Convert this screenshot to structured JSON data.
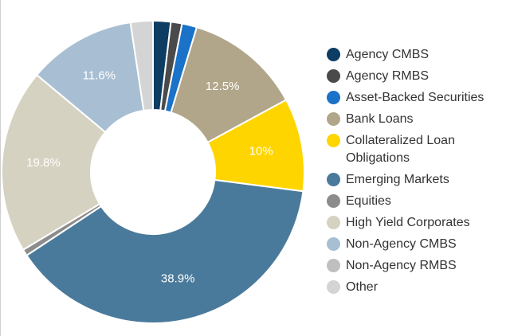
{
  "chart_data": {
    "type": "pie",
    "variant": "donut",
    "title": "",
    "start_angle_deg": 0,
    "direction": "clockwise",
    "series": [
      {
        "name": "Agency CMBS",
        "value": 1.9,
        "color": "#0d3d63",
        "label": ""
      },
      {
        "name": "Agency RMBS",
        "value": 1.2,
        "color": "#4a4a4a",
        "label": ""
      },
      {
        "name": "Asset-Backed Securities",
        "value": 1.6,
        "color": "#1a72c9",
        "label": ""
      },
      {
        "name": "Bank Loans",
        "value": 12.5,
        "color": "#b1a68a",
        "label": "12.5%"
      },
      {
        "name": "Collateralized Loan Obligations",
        "value": 10.0,
        "color": "#ffd500",
        "label": "10%"
      },
      {
        "name": "Emerging Markets",
        "value": 38.9,
        "color": "#4a7a9b",
        "label": "38.9%"
      },
      {
        "name": "Equities",
        "value": 0.7,
        "color": "#8c8c8c",
        "label": ""
      },
      {
        "name": "High Yield Corporates",
        "value": 19.8,
        "color": "#d6d2c1",
        "label": "19.8%"
      },
      {
        "name": "Non-Agency CMBS",
        "value": 11.6,
        "color": "#a8bfd3",
        "label": "11.6%"
      },
      {
        "name": "Non-Agency RMBS",
        "value": 0.0,
        "color": "#bfbfbf",
        "label": ""
      },
      {
        "name": "Other",
        "value": 2.4,
        "color": "#d4d4d4",
        "label": ""
      }
    ]
  },
  "legend": {
    "items": [
      {
        "label": "Agency CMBS",
        "color": "#0d3d63"
      },
      {
        "label": "Agency RMBS",
        "color": "#4a4a4a"
      },
      {
        "label": "Asset-Backed Securities",
        "color": "#1a72c9"
      },
      {
        "label": "Bank Loans",
        "color": "#b1a68a"
      },
      {
        "label": "Collateralized Loan Obligations",
        "color": "#ffd500"
      },
      {
        "label": "Emerging Markets",
        "color": "#4a7a9b"
      },
      {
        "label": "Equities",
        "color": "#8c8c8c"
      },
      {
        "label": "High Yield Corporates",
        "color": "#d6d2c1"
      },
      {
        "label": "Non-Agency CMBS",
        "color": "#a8bfd3"
      },
      {
        "label": "Non-Agency RMBS",
        "color": "#bfbfbf"
      },
      {
        "label": "Other",
        "color": "#d4d4d4"
      }
    ]
  }
}
